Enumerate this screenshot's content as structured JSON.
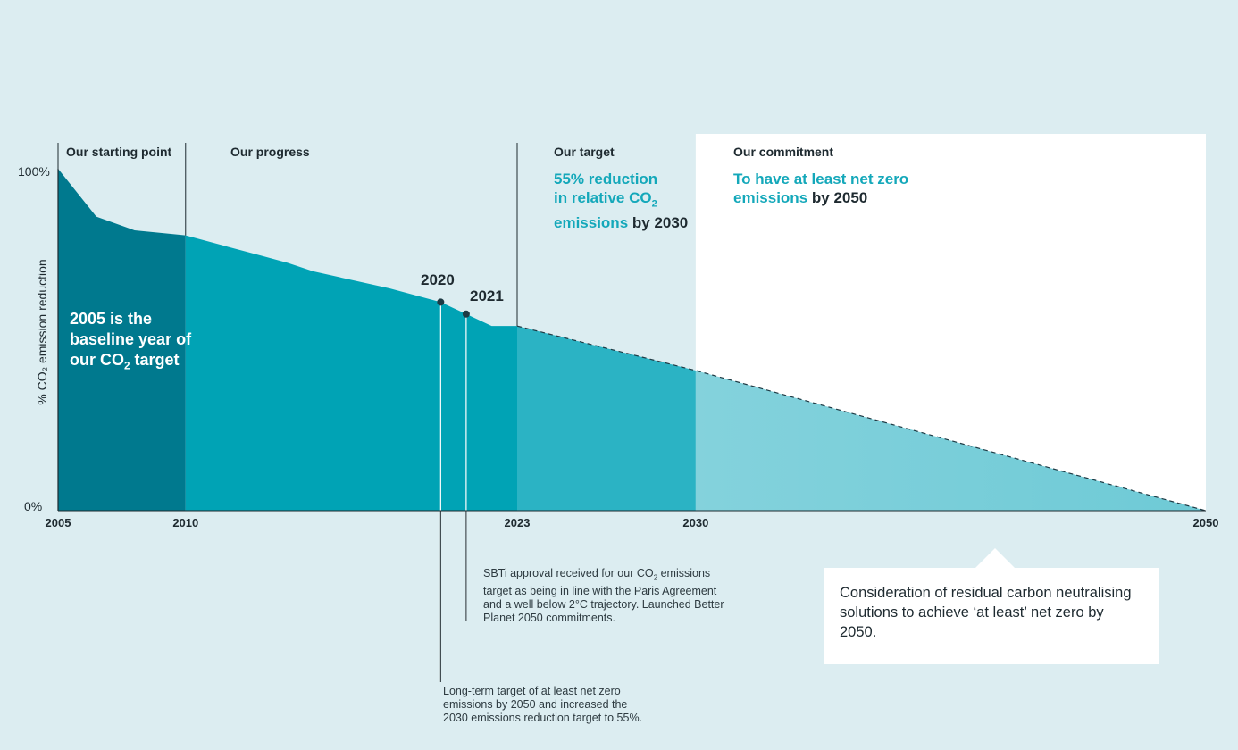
{
  "chart_data": {
    "type": "area",
    "title": "",
    "xlabel": "",
    "ylabel": "% CO₂ emission reduction",
    "xlim": [
      2005,
      2050
    ],
    "ylim": [
      0,
      100
    ],
    "y_ticks": [
      "100%",
      "0%"
    ],
    "x_ticks": [
      2005,
      2010,
      2023,
      2030,
      2050
    ],
    "series": [
      {
        "actual": [
          {
            "x": 2005,
            "y": 100
          },
          {
            "x": 2006.5,
            "y": 86
          },
          {
            "x": 2008,
            "y": 82
          },
          {
            "x": 2010,
            "y": 80.5
          },
          {
            "x": 2011.5,
            "y": 77.5
          },
          {
            "x": 2013,
            "y": 74.5
          },
          {
            "x": 2014,
            "y": 72.5
          },
          {
            "x": 2015,
            "y": 70
          },
          {
            "x": 2016.5,
            "y": 67.5
          },
          {
            "x": 2018,
            "y": 65
          },
          {
            "x": 2020,
            "y": 61
          },
          {
            "x": 2021,
            "y": 57.5
          },
          {
            "x": 2022,
            "y": 54
          },
          {
            "x": 2023,
            "y": 54
          }
        ],
        "projected": [
          {
            "x": 2023,
            "y": 54
          },
          {
            "x": 2030,
            "y": 41
          },
          {
            "x": 2050,
            "y": 0
          }
        ]
      }
    ],
    "highlighted_points": [
      {
        "x": 2020,
        "y": 61,
        "label": "2020"
      },
      {
        "x": 2021,
        "y": 57.5,
        "label": "2021"
      }
    ],
    "colors": {
      "baseline": "#00798e",
      "progress": "#00a3b5",
      "target": "#2bb3c4",
      "commitment_fill": "#6ecad6",
      "background": "#dcedf1",
      "accent_text": "#14a8ba"
    }
  },
  "phases": {
    "starting": "Our starting point",
    "progress": "Our progress",
    "target": "Our target",
    "commitment": "Our commitment"
  },
  "target_text": {
    "line1": "55% reduction",
    "line2a": "in relative CO",
    "line2sub": "2",
    "line3": "emissions",
    "line3b": " by 2030"
  },
  "commitment_text": {
    "line1": "To have at least net zero",
    "line2": "emissions",
    "line2b": " by 2050"
  },
  "baseline_note": {
    "line1": "2005 is the",
    "line2": "baseline year of",
    "line3a": "our CO",
    "line3sub": "2",
    "line3b": " target"
  },
  "notes": {
    "n2021_a": "SBTi approval received for our CO",
    "n2021_sub": "2",
    "n2021_b": "emissions target as being in line with the Paris Agreement and a well below 2°C trajectory. Launched Better Planet 2050 commitments.",
    "n2020": "Long-term target of at least net zero emissions by 2050 and increased the 2030 emissions reduction target to 55%.",
    "callout": "Consideration of residual carbon neutralising solutions to achieve ‘at least’ net zero by 2050."
  }
}
